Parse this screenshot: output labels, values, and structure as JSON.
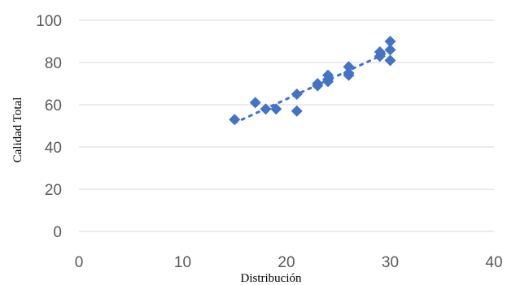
{
  "chart_data": {
    "type": "scatter",
    "title": "",
    "xlabel": "Distribución",
    "ylabel": "Calidad Total",
    "xlim": [
      0,
      40
    ],
    "ylim": [
      0,
      100
    ],
    "x_ticks": [
      "0",
      "10",
      "20",
      "30",
      "40"
    ],
    "y_ticks": [
      "0",
      "20",
      "40",
      "60",
      "80",
      "100"
    ],
    "grid": "horizontal",
    "legend": "none",
    "trendline": "linear, dotted",
    "colors": {
      "marker": "#4472C4",
      "grid": "#D9D9D9",
      "tick_text": "#595959"
    },
    "series": [
      {
        "marker": "diamond",
        "points": [
          {
            "x": 15,
            "y": 53
          },
          {
            "x": 17,
            "y": 61
          },
          {
            "x": 18,
            "y": 58
          },
          {
            "x": 19,
            "y": 58
          },
          {
            "x": 21,
            "y": 57
          },
          {
            "x": 21,
            "y": 65
          },
          {
            "x": 23,
            "y": 69
          },
          {
            "x": 23,
            "y": 70
          },
          {
            "x": 24,
            "y": 71
          },
          {
            "x": 24,
            "y": 72
          },
          {
            "x": 24,
            "y": 74
          },
          {
            "x": 26,
            "y": 74
          },
          {
            "x": 26,
            "y": 75
          },
          {
            "x": 26,
            "y": 78
          },
          {
            "x": 29,
            "y": 83
          },
          {
            "x": 29,
            "y": 85
          },
          {
            "x": 30,
            "y": 81
          },
          {
            "x": 30,
            "y": 86
          },
          {
            "x": 30,
            "y": 90
          }
        ]
      }
    ]
  }
}
